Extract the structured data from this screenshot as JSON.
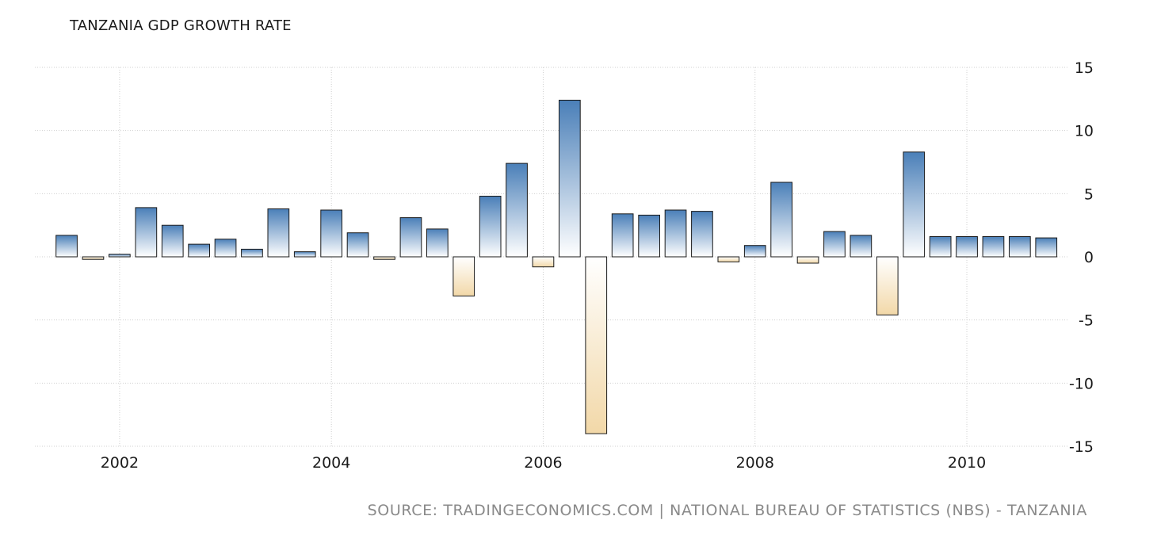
{
  "chart_data": {
    "type": "bar",
    "title": "TANZANIA GDP GROWTH RATE",
    "source": "SOURCE: TRADINGECONOMICS.COM | NATIONAL BUREAU OF STATISTICS (NBS) - TANZANIA",
    "xlabel": "",
    "ylabel": "",
    "ylim": [
      -15,
      15
    ],
    "yticks": [
      15,
      10,
      5,
      0,
      -5,
      -10,
      -15
    ],
    "xticks": [
      "2002",
      "2004",
      "2006",
      "2008",
      "2010"
    ],
    "xrange": [
      2001.2,
      2010.95
    ],
    "grid": true,
    "y_axis_side": "right",
    "colors": {
      "positive_top": "#4a7fb8",
      "positive_bottom": "#ffffff",
      "negative_top": "#ffffff",
      "negative_bottom": "#f2d8a8",
      "bar_stroke": "#1a1a1a",
      "grid": "#d0d0d0"
    },
    "series": [
      {
        "x": [
          "2001-07-01",
          "2001-10-01",
          "2002-01-01",
          "2002-04-01",
          "2002-07-01",
          "2002-10-01",
          "2003-01-01",
          "2003-04-01",
          "2003-07-01",
          "2003-10-01",
          "2004-01-01",
          "2004-04-01",
          "2004-07-01",
          "2004-10-01",
          "2005-01-01",
          "2005-04-01",
          "2005-07-01",
          "2005-10-01",
          "2006-01-01",
          "2006-04-01",
          "2006-07-01",
          "2006-10-01",
          "2007-01-01",
          "2007-04-01",
          "2007-07-01",
          "2007-10-01",
          "2008-01-01",
          "2008-04-01",
          "2008-07-01",
          "2008-10-01",
          "2009-01-01",
          "2009-04-01",
          "2009-07-01",
          "2009-10-01",
          "2010-01-01",
          "2010-04-01",
          "2010-07-01",
          "2010-10-01"
        ],
        "values": [
          1.7,
          -0.2,
          0.2,
          3.9,
          2.5,
          1.0,
          1.4,
          0.6,
          3.8,
          0.4,
          3.7,
          1.9,
          -0.2,
          3.1,
          2.2,
          -3.1,
          4.8,
          7.4,
          -0.8,
          12.4,
          -14.0,
          3.4,
          3.3,
          3.7,
          3.6,
          -0.4,
          0.9,
          5.9,
          -0.5,
          2.0,
          1.7,
          -4.6,
          8.3,
          1.6,
          1.6,
          1.6,
          1.6,
          1.5
        ]
      }
    ]
  }
}
